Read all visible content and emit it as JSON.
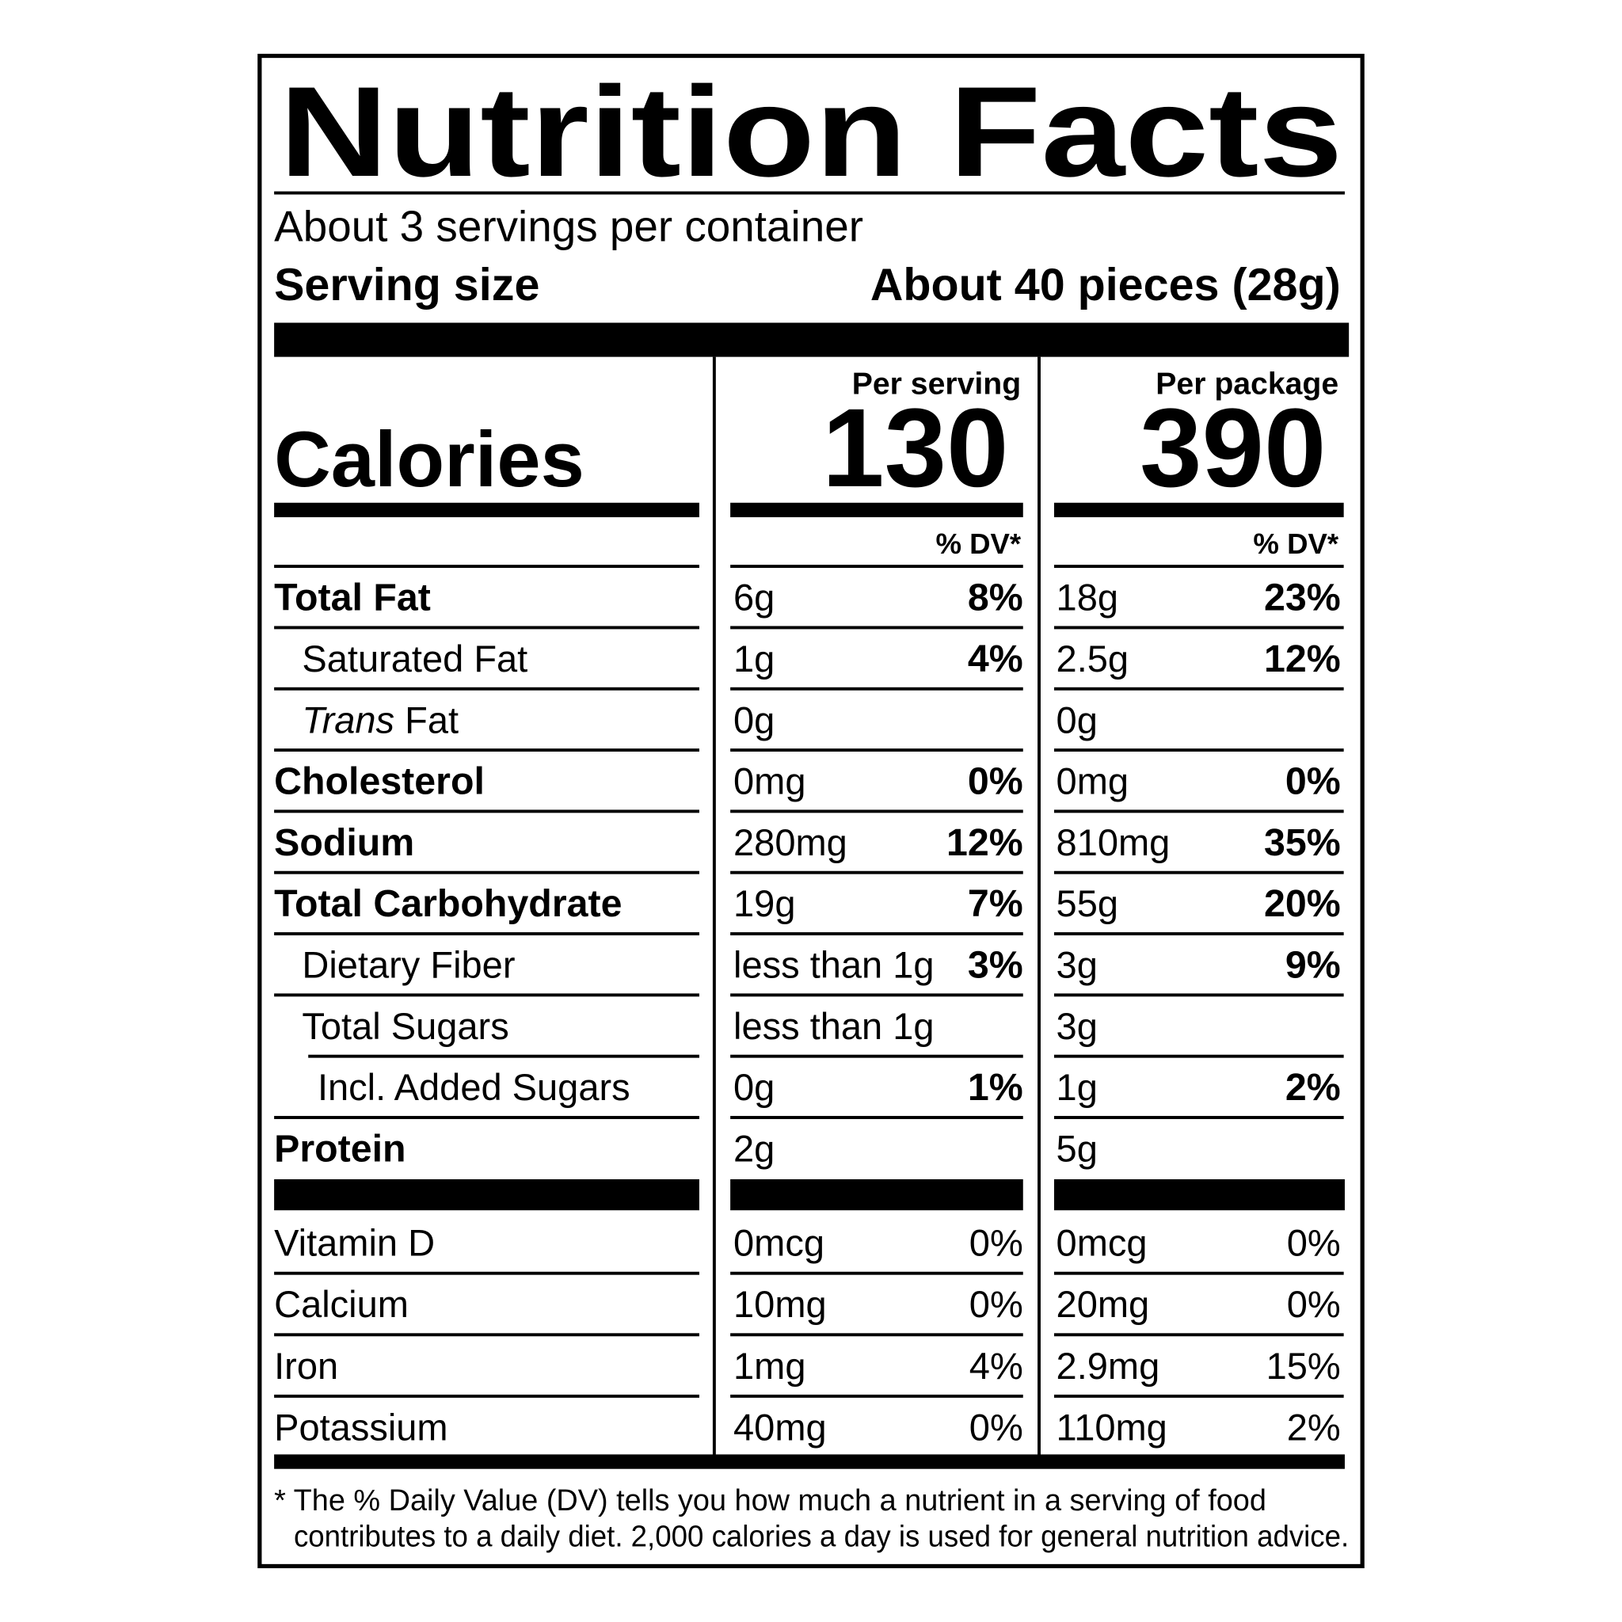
{
  "title": "Nutrition Facts",
  "servings": "About 3 servings per container",
  "serving_size": {
    "label": "Serving size",
    "value": "About 40 pieces (28g)"
  },
  "calories_label": "Calories",
  "columns": [
    {
      "header": "Per serving",
      "calories": "130",
      "dv_header": "% DV*"
    },
    {
      "header": "Per package",
      "calories": "390",
      "dv_header": "% DV*"
    }
  ],
  "rows": [
    {
      "name": "Total Fat",
      "style": "bold",
      "values": [
        [
          "6g",
          "8%"
        ],
        [
          "18g",
          "23%"
        ]
      ]
    },
    {
      "name": "Saturated Fat",
      "style": "indent",
      "values": [
        [
          "1g",
          "4%"
        ],
        [
          "2.5g",
          "12%"
        ]
      ]
    },
    {
      "italic": "Trans",
      "name": "Fat",
      "style": "indent",
      "values": [
        [
          "0g"
        ],
        [
          "0g"
        ]
      ]
    },
    {
      "name": "Cholesterol",
      "style": "bold",
      "values": [
        [
          "0mg",
          "0%"
        ],
        [
          "0mg",
          "0%"
        ]
      ]
    },
    {
      "name": "Sodium",
      "style": "bold",
      "values": [
        [
          "280mg",
          "12%"
        ],
        [
          "810mg",
          "35%"
        ]
      ]
    },
    {
      "name": "Total Carbohydrate",
      "style": "bold",
      "values": [
        [
          "19g",
          "7%"
        ],
        [
          "55g",
          "20%"
        ]
      ]
    },
    {
      "name": "Dietary Fiber",
      "style": "indent",
      "values": [
        [
          "less than 1g",
          "3%"
        ],
        [
          "3g",
          "9%"
        ]
      ]
    },
    {
      "name": "Total Sugars",
      "style": "indent",
      "values": [
        [
          "less than 1g"
        ],
        [
          "3g"
        ]
      ]
    },
    {
      "name": "Incl. Added Sugars",
      "style": "indent2",
      "values": [
        [
          "0g",
          "1%"
        ],
        [
          "1g",
          "2%"
        ]
      ]
    },
    {
      "name": "Protein",
      "style": "bold",
      "values": [
        [
          "2g"
        ],
        [
          "5g"
        ]
      ]
    }
  ],
  "micros": [
    {
      "name": "Vitamin D",
      "values": [
        [
          "0mcg",
          "0%"
        ],
        [
          "0mcg",
          "0%"
        ]
      ]
    },
    {
      "name": "Calcium",
      "values": [
        [
          "10mg",
          "0%"
        ],
        [
          "20mg",
          "0%"
        ]
      ]
    },
    {
      "name": "Iron",
      "values": [
        [
          "1mg",
          "4%"
        ],
        [
          "2.9mg",
          "15%"
        ]
      ]
    },
    {
      "name": "Potassium",
      "values": [
        [
          "40mg",
          "0%"
        ],
        [
          "110mg",
          "2%"
        ]
      ]
    }
  ],
  "footnote": [
    "* The % Daily Value (DV) tells you how much a nutrient in a serving of food",
    "contributes to a daily diet. 2,000 calories a day is used for general nutrition advice."
  ]
}
